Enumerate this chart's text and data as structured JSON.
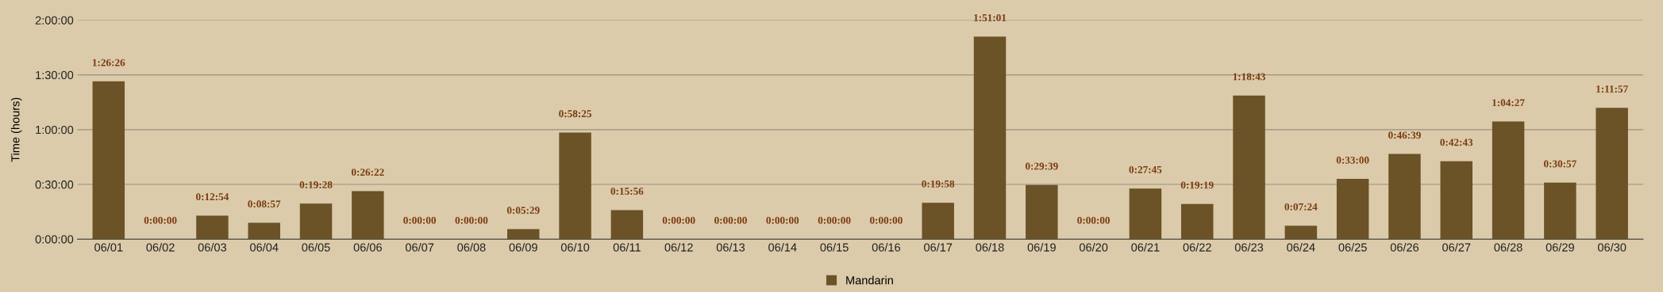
{
  "chart_data": {
    "type": "bar",
    "ylabel": "Time (hours)",
    "categories": [
      "06/01",
      "06/02",
      "06/03",
      "06/04",
      "06/05",
      "06/06",
      "06/07",
      "06/08",
      "06/09",
      "06/10",
      "06/11",
      "06/12",
      "06/13",
      "06/14",
      "06/15",
      "06/16",
      "06/17",
      "06/18",
      "06/19",
      "06/20",
      "06/21",
      "06/22",
      "06/23",
      "06/24",
      "06/25",
      "06/26",
      "06/27",
      "06/28",
      "06/29",
      "06/30"
    ],
    "series": [
      {
        "name": "Mandarin",
        "color": "#6b5227",
        "values": [
          1.4406,
          0,
          0.215,
          0.1492,
          0.3244,
          0.4394,
          0,
          0,
          0.0914,
          0.9736,
          0.2656,
          0,
          0,
          0,
          0,
          0,
          0.3328,
          1.8503,
          0.4942,
          0,
          0.4625,
          0.3219,
          1.3119,
          0.1233,
          0.55,
          0.7775,
          0.7119,
          1.0742,
          0.5158,
          1.1992
        ],
        "value_labels": [
          "1:26:26",
          "0:00:00",
          "0:12:54",
          "0:08:57",
          "0:19:28",
          "0:26:22",
          "0:00:00",
          "0:00:00",
          "0:05:29",
          "0:58:25",
          "0:15:56",
          "0:00:00",
          "0:00:00",
          "0:00:00",
          "0:00:00",
          "0:00:00",
          "0:19:58",
          "1:51:01",
          "0:29:39",
          "0:00:00",
          "0:27:45",
          "0:19:19",
          "1:18:43",
          "0:07:24",
          "0:33:00",
          "0:46:39",
          "0:42:43",
          "1:04:27",
          "0:30:57",
          "1:11:57"
        ]
      }
    ],
    "ylim": [
      0,
      2
    ],
    "yticks": [
      {
        "value": 0,
        "label": "0:00:00"
      },
      {
        "value": 0.5,
        "label": "0:30:00"
      },
      {
        "value": 1,
        "label": "1:00:00"
      },
      {
        "value": 1.5,
        "label": "1:30:00"
      },
      {
        "value": 2,
        "label": "2:00:00"
      }
    ],
    "grid": "y",
    "legend": "bottom"
  }
}
